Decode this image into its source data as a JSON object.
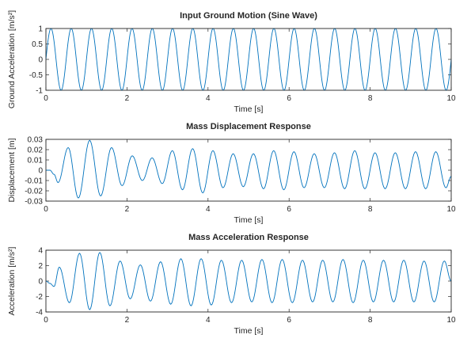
{
  "chart_data": [
    {
      "type": "line",
      "title": "Input Ground Motion (Sine Wave)",
      "xlabel": "Time [s]",
      "ylabel": "Ground Acceleration [m/s²]",
      "xlim": [
        0,
        10
      ],
      "ylim": [
        -1,
        1
      ],
      "xticks": [
        "0",
        "2",
        "4",
        "6",
        "8",
        "10"
      ],
      "yticks": [
        "-1",
        "-0.5",
        "0",
        "0.5",
        "1"
      ],
      "grid": false,
      "color": "#0072bd",
      "series": [
        {
          "x": [
            0,
            0.125,
            0.25,
            0.375,
            0.5,
            0.625,
            0.75,
            0.875,
            1.0,
            1.5,
            2.0,
            2.5,
            3.0,
            3.5,
            4.0,
            4.5,
            5.0,
            5.5,
            6.0,
            6.5,
            7.0,
            7.5,
            8.0,
            8.5,
            9.0,
            9.5,
            9.75,
            9.875,
            10.0
          ],
          "y": [
            0,
            1,
            0,
            -1,
            0,
            1,
            0,
            -1,
            0,
            0,
            0,
            0,
            0,
            0,
            0,
            0,
            0,
            0,
            0,
            0,
            0,
            0,
            0,
            0,
            0,
            0,
            0,
            -1,
            0
          ]
        }
      ]
    },
    {
      "type": "line",
      "title": "Mass Displacement Response",
      "xlabel": "Time [s]",
      "ylabel": "Displacement [m]",
      "xlim": [
        0,
        10
      ],
      "ylim": [
        -0.03,
        0.03
      ],
      "xticks": [
        "0",
        "2",
        "4",
        "6",
        "8",
        "10"
      ],
      "yticks": [
        "-0.03",
        "-0.02",
        "-0.01",
        "0",
        "0.01",
        "0.02",
        "0.03"
      ],
      "grid": false,
      "color": "#0072bd",
      "series": [
        {
          "x": [
            0.0,
            0.1,
            0.2,
            0.3,
            0.55,
            0.8,
            1.08,
            1.35,
            1.62,
            1.88,
            2.13,
            2.38,
            2.62,
            2.87,
            3.12,
            3.37,
            3.62,
            3.87,
            4.12,
            4.37,
            4.62,
            4.87,
            5.12,
            5.37,
            5.62,
            5.87,
            6.12,
            6.37,
            6.62,
            6.87,
            7.12,
            7.37,
            7.62,
            7.87,
            8.12,
            8.37,
            8.62,
            8.87,
            9.12,
            9.37,
            9.62,
            9.87,
            10.0
          ],
          "y": [
            0.0,
            0.0,
            -0.004,
            -0.012,
            0.022,
            -0.027,
            0.029,
            -0.025,
            0.022,
            -0.015,
            0.014,
            -0.01,
            0.012,
            -0.013,
            0.019,
            -0.019,
            0.021,
            -0.022,
            0.019,
            -0.017,
            0.016,
            -0.016,
            0.016,
            -0.018,
            0.019,
            -0.019,
            0.018,
            -0.017,
            0.016,
            -0.017,
            0.017,
            -0.018,
            0.019,
            -0.018,
            0.017,
            -0.018,
            0.017,
            -0.018,
            0.018,
            -0.018,
            0.018,
            -0.017,
            -0.006
          ]
        }
      ]
    },
    {
      "type": "line",
      "title": "Mass Acceleration Response",
      "xlabel": "Time [s]",
      "ylabel": "Acceleration [m/s²]",
      "xlim": [
        0,
        10
      ],
      "ylim": [
        -4,
        4
      ],
      "xticks": [
        "0",
        "2",
        "4",
        "6",
        "8",
        "10"
      ],
      "yticks": [
        "-4",
        "-2",
        "0",
        "2",
        "4"
      ],
      "grid": false,
      "color": "#0072bd",
      "series": [
        {
          "x": [
            0.0,
            0.1,
            0.2,
            0.33,
            0.58,
            0.83,
            1.08,
            1.33,
            1.58,
            1.83,
            2.08,
            2.33,
            2.58,
            2.83,
            3.08,
            3.33,
            3.58,
            3.83,
            4.08,
            4.33,
            4.58,
            4.83,
            5.08,
            5.33,
            5.58,
            5.83,
            6.08,
            6.33,
            6.58,
            6.83,
            7.08,
            7.33,
            7.58,
            7.83,
            8.08,
            8.33,
            8.58,
            8.83,
            9.08,
            9.33,
            9.58,
            9.83,
            10.0
          ],
          "y": [
            0.0,
            -0.3,
            -0.7,
            1.8,
            -2.8,
            3.6,
            -3.7,
            3.7,
            -3.2,
            2.6,
            -2.3,
            2.1,
            -2.6,
            2.5,
            -3.0,
            2.9,
            -3.2,
            2.9,
            -3.1,
            2.7,
            -2.8,
            2.7,
            -2.7,
            2.8,
            -2.8,
            2.8,
            -2.8,
            2.7,
            -2.7,
            2.7,
            -2.7,
            2.8,
            -2.8,
            2.7,
            -2.7,
            2.7,
            -2.7,
            2.7,
            -2.7,
            2.6,
            -2.7,
            2.6,
            0.0
          ]
        }
      ]
    }
  ]
}
